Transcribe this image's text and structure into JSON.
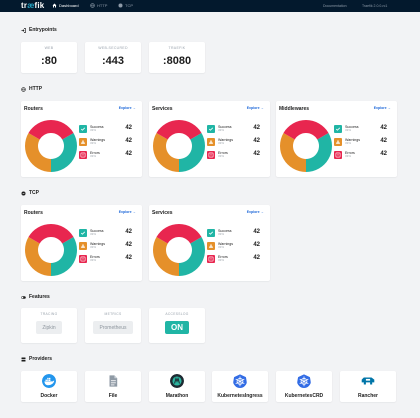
{
  "nav": {
    "logo_a": "tr",
    "logo_o": "æ",
    "logo_b": "fik",
    "items": [
      {
        "label": "Dashboard"
      },
      {
        "label": "HTTP"
      },
      {
        "label": "TCP"
      }
    ],
    "documentation": "Documentation",
    "version": "Traefik 2.0.0-rc1"
  },
  "entrypoints": {
    "title": "Entrypoints",
    "items": [
      {
        "name": "WEB",
        "port": ":80"
      },
      {
        "name": "WEB-SECURED",
        "port": ":443"
      },
      {
        "name": "TRAEFIK",
        "port": ":8080"
      }
    ]
  },
  "http": {
    "title": "HTTP",
    "cards": [
      {
        "title": "Routers",
        "explore": "Explore →"
      },
      {
        "title": "Services",
        "explore": "Explore →"
      },
      {
        "title": "Middlewares",
        "explore": "Explore →"
      }
    ]
  },
  "tcp": {
    "title": "TCP",
    "cards": [
      {
        "title": "Routers",
        "explore": "Explore →"
      },
      {
        "title": "Services",
        "explore": "Explore →"
      }
    ]
  },
  "stats": [
    {
      "label": "Success",
      "pct": "33%",
      "count": "42",
      "color": "#20b5a5"
    },
    {
      "label": "Warnings",
      "pct": "33%",
      "count": "42",
      "color": "#e5902a"
    },
    {
      "label": "Errors",
      "pct": "33%",
      "count": "42",
      "color": "#e8264f"
    }
  ],
  "donut": {
    "segments": [
      {
        "name": "Success",
        "fraction": 0.3333,
        "color": "#20b5a5"
      },
      {
        "name": "Warnings",
        "fraction": 0.3333,
        "color": "#e5902a"
      },
      {
        "name": "Errors",
        "fraction": 0.3334,
        "color": "#e8264f"
      }
    ]
  },
  "features": {
    "title": "Features",
    "items": [
      {
        "name": "TRACING",
        "value": "Zipkin",
        "state": "value"
      },
      {
        "name": "METRICS",
        "value": "Prometheus",
        "state": "value"
      },
      {
        "name": "ACCESSLOG",
        "value": "ON",
        "state": "on"
      }
    ]
  },
  "providers": {
    "title": "Providers",
    "items": [
      {
        "name": "Docker",
        "icon": "docker-icon"
      },
      {
        "name": "File",
        "icon": "file-icon"
      },
      {
        "name": "Marathon",
        "icon": "marathon-icon"
      },
      {
        "name": "KubernetesIngress",
        "icon": "kubernetes-icon"
      },
      {
        "name": "KubernetesCRD",
        "icon": "kubernetes-icon"
      },
      {
        "name": "Rancher",
        "icon": "rancher-icon"
      }
    ]
  }
}
